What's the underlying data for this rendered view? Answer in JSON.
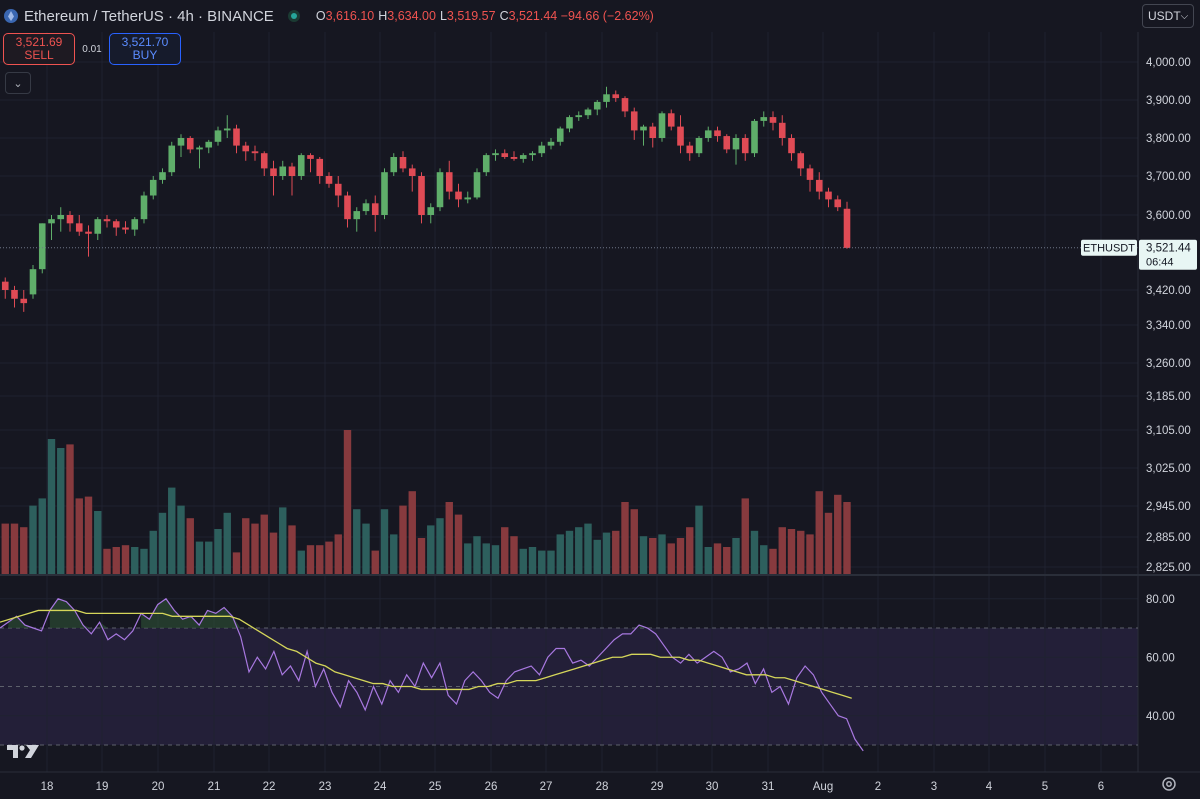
{
  "header": {
    "title": "Ethereum / TetherUS · 4h · BINANCE",
    "ohlc": [
      {
        "key": "O",
        "value": "3,616.10"
      },
      {
        "key": "H",
        "value": "3,634.00"
      },
      {
        "key": "L",
        "value": "3,519.57"
      },
      {
        "key": "C",
        "value": "3,521.44 −94.66 (−2.62%)"
      }
    ],
    "currency": "USDT",
    "icons": [
      "ethereum-logo-icon",
      "market-status-icon",
      "chevron-down-icon"
    ]
  },
  "trade": {
    "sell_price": "3,521.69",
    "sell_label": "SELL",
    "spread": "0.01",
    "buy_price": "3,521.70",
    "buy_label": "BUY"
  },
  "price_marker": {
    "symbol": "ETHUSDT",
    "price": "3,521.44",
    "countdown": "06:44"
  },
  "colors": {
    "background": "#161721",
    "up": "#5fae6a",
    "down": "#e04b55",
    "vol_up": "#2d5f5d",
    "vol_down": "#873a3e",
    "rsi_line": "#a878e0",
    "rsi_ma": "#d5d65a",
    "rsi_band": "#231f38"
  },
  "chart_data": [
    {
      "type": "candlestick",
      "name": "ETHUSDT 4h",
      "x_ticks": [
        "18",
        "19",
        "20",
        "21",
        "22",
        "23",
        "24",
        "25",
        "26",
        "27",
        "28",
        "29",
        "30",
        "31",
        "Aug",
        "2",
        "3",
        "4",
        "5",
        "6"
      ],
      "y_ticks": [
        "4,000.00",
        "3,900.00",
        "3,800.00",
        "3,700.00",
        "3,600.00",
        "3,420.00",
        "3,340.00",
        "3,260.00",
        "3,185.00",
        "3,105.00",
        "3,025.00",
        "2,945.00",
        "2,885.00",
        "2,825.00"
      ],
      "y_tick_values": [
        4000,
        3900,
        3800,
        3700,
        3600,
        3420,
        3340,
        3260,
        3185,
        3105,
        3025,
        2945,
        2885,
        2825
      ],
      "last_price": 3521.44,
      "candles": [
        [
          3380,
          3440,
          3360,
          3440
        ],
        [
          3440,
          3450,
          3400,
          3420
        ],
        [
          3420,
          3430,
          3380,
          3400
        ],
        [
          3400,
          3420,
          3370,
          3390
        ],
        [
          3410,
          3480,
          3400,
          3470
        ],
        [
          3470,
          3580,
          3460,
          3580
        ],
        [
          3580,
          3600,
          3540,
          3590
        ],
        [
          3590,
          3620,
          3560,
          3600
        ],
        [
          3600,
          3610,
          3560,
          3580
        ],
        [
          3580,
          3600,
          3550,
          3560
        ],
        [
          3560,
          3575,
          3500,
          3555
        ],
        [
          3555,
          3595,
          3540,
          3590
        ],
        [
          3590,
          3600,
          3570,
          3585
        ],
        [
          3585,
          3590,
          3550,
          3570
        ],
        [
          3570,
          3585,
          3555,
          3565
        ],
        [
          3565,
          3595,
          3550,
          3590
        ],
        [
          3590,
          3660,
          3580,
          3650
        ],
        [
          3650,
          3700,
          3640,
          3690
        ],
        [
          3690,
          3720,
          3680,
          3710
        ],
        [
          3710,
          3790,
          3700,
          3780
        ],
        [
          3780,
          3810,
          3750,
          3800
        ],
        [
          3800,
          3805,
          3760,
          3770
        ],
        [
          3770,
          3780,
          3720,
          3775
        ],
        [
          3775,
          3795,
          3760,
          3790
        ],
        [
          3790,
          3830,
          3780,
          3820
        ],
        [
          3820,
          3860,
          3800,
          3825
        ],
        [
          3825,
          3835,
          3760,
          3780
        ],
        [
          3780,
          3790,
          3740,
          3765
        ],
        [
          3765,
          3780,
          3740,
          3760
        ],
        [
          3760,
          3765,
          3700,
          3720
        ],
        [
          3720,
          3740,
          3650,
          3700
        ],
        [
          3700,
          3740,
          3690,
          3725
        ],
        [
          3725,
          3735,
          3650,
          3700
        ],
        [
          3700,
          3760,
          3690,
          3755
        ],
        [
          3755,
          3760,
          3710,
          3745
        ],
        [
          3745,
          3750,
          3680,
          3700
        ],
        [
          3700,
          3710,
          3670,
          3680
        ],
        [
          3680,
          3700,
          3620,
          3650
        ],
        [
          3650,
          3660,
          3570,
          3590
        ],
        [
          3590,
          3620,
          3560,
          3610
        ],
        [
          3610,
          3640,
          3600,
          3630
        ],
        [
          3630,
          3650,
          3560,
          3600
        ],
        [
          3600,
          3720,
          3590,
          3710
        ],
        [
          3710,
          3760,
          3700,
          3750
        ],
        [
          3750,
          3765,
          3710,
          3720
        ],
        [
          3720,
          3730,
          3660,
          3700
        ],
        [
          3700,
          3710,
          3580,
          3600
        ],
        [
          3600,
          3630,
          3580,
          3620
        ],
        [
          3620,
          3720,
          3610,
          3710
        ],
        [
          3710,
          3740,
          3640,
          3660
        ],
        [
          3660,
          3680,
          3620,
          3640
        ],
        [
          3640,
          3660,
          3630,
          3645
        ],
        [
          3645,
          3720,
          3640,
          3710
        ],
        [
          3710,
          3760,
          3700,
          3755
        ],
        [
          3755,
          3770,
          3740,
          3760
        ],
        [
          3760,
          3770,
          3745,
          3750
        ],
        [
          3750,
          3765,
          3740,
          3745
        ],
        [
          3745,
          3760,
          3735,
          3755
        ],
        [
          3755,
          3765,
          3740,
          3760
        ],
        [
          3760,
          3790,
          3750,
          3780
        ],
        [
          3780,
          3800,
          3770,
          3790
        ],
        [
          3790,
          3830,
          3780,
          3825
        ],
        [
          3825,
          3860,
          3815,
          3855
        ],
        [
          3855,
          3870,
          3845,
          3860
        ],
        [
          3860,
          3880,
          3850,
          3875
        ],
        [
          3875,
          3900,
          3860,
          3895
        ],
        [
          3895,
          3935,
          3880,
          3915
        ],
        [
          3915,
          3925,
          3895,
          3905
        ],
        [
          3905,
          3910,
          3855,
          3870
        ],
        [
          3870,
          3880,
          3795,
          3820
        ],
        [
          3820,
          3835,
          3780,
          3830
        ],
        [
          3830,
          3840,
          3775,
          3800
        ],
        [
          3800,
          3870,
          3790,
          3865
        ],
        [
          3865,
          3875,
          3820,
          3830
        ],
        [
          3830,
          3860,
          3760,
          3780
        ],
        [
          3780,
          3790,
          3740,
          3760
        ],
        [
          3760,
          3805,
          3750,
          3800
        ],
        [
          3800,
          3830,
          3790,
          3820
        ],
        [
          3820,
          3830,
          3790,
          3805
        ],
        [
          3805,
          3810,
          3760,
          3770
        ],
        [
          3770,
          3810,
          3730,
          3800
        ],
        [
          3800,
          3810,
          3740,
          3760
        ],
        [
          3760,
          3850,
          3750,
          3845
        ],
        [
          3845,
          3870,
          3830,
          3855
        ],
        [
          3855,
          3870,
          3820,
          3840
        ],
        [
          3840,
          3860,
          3780,
          3800
        ],
        [
          3800,
          3810,
          3740,
          3760
        ],
        [
          3760,
          3765,
          3700,
          3720
        ],
        [
          3720,
          3730,
          3660,
          3690
        ],
        [
          3690,
          3710,
          3640,
          3660
        ],
        [
          3660,
          3670,
          3620,
          3640
        ],
        [
          3640,
          3650,
          3610,
          3620
        ],
        [
          3616,
          3634,
          3519,
          3521
        ]
      ],
      "volume": [
        0.28,
        0.28,
        0.28,
        0.26,
        0.38,
        0.42,
        0.75,
        0.7,
        0.72,
        0.42,
        0.43,
        0.35,
        0.14,
        0.15,
        0.16,
        0.15,
        0.14,
        0.24,
        0.34,
        0.48,
        0.38,
        0.31,
        0.18,
        0.18,
        0.25,
        0.34,
        0.12,
        0.31,
        0.28,
        0.33,
        0.23,
        0.37,
        0.27,
        0.13,
        0.16,
        0.16,
        0.18,
        0.22,
        0.8,
        0.36,
        0.28,
        0.13,
        0.36,
        0.22,
        0.38,
        0.46,
        0.2,
        0.27,
        0.31,
        0.4,
        0.33,
        0.17,
        0.21,
        0.17,
        0.16,
        0.26,
        0.21,
        0.14,
        0.15,
        0.13,
        0.13,
        0.22,
        0.24,
        0.26,
        0.28,
        0.19,
        0.23,
        0.24,
        0.4,
        0.36,
        0.21,
        0.2,
        0.22,
        0.17,
        0.2,
        0.26,
        0.38,
        0.15,
        0.17,
        0.15,
        0.2,
        0.42,
        0.24,
        0.16,
        0.14,
        0.26,
        0.25,
        0.24,
        0.22,
        0.46,
        0.34,
        0.44,
        0.4
      ]
    },
    {
      "type": "line",
      "name": "RSI",
      "y_ticks": [
        "80.00",
        "60.00",
        "40.00"
      ],
      "y_tick_values": [
        80,
        60,
        40
      ],
      "band": [
        30,
        70
      ],
      "midline": 50,
      "rsi": [
        70,
        72,
        74,
        71,
        70,
        69,
        76,
        80,
        79,
        76,
        71,
        68,
        72,
        66,
        68,
        66,
        69,
        75,
        73,
        78,
        80,
        76,
        73,
        74,
        71,
        76,
        75,
        77,
        74,
        67,
        55,
        60,
        56,
        62,
        54,
        57,
        52,
        62,
        50,
        56,
        48,
        43,
        52,
        48,
        42,
        50,
        44,
        52,
        48,
        54,
        50,
        58,
        53,
        58,
        47,
        44,
        52,
        55,
        52,
        48,
        46,
        52,
        55,
        56,
        57,
        54,
        60,
        63,
        63,
        58,
        59,
        57,
        60,
        63,
        66,
        68,
        68,
        71,
        70,
        68,
        64,
        60,
        58,
        61,
        58,
        60,
        62,
        60,
        55,
        56,
        58,
        51,
        56,
        48,
        50,
        44,
        53,
        57,
        54,
        48,
        44,
        40,
        39,
        32,
        28
      ],
      "rsi_ma": [
        72,
        73,
        74,
        75,
        76,
        76,
        76,
        76,
        76,
        75,
        75,
        75,
        75,
        75,
        75,
        75,
        75,
        75,
        74,
        74,
        74,
        74,
        74,
        74,
        74,
        73,
        71,
        69,
        67,
        65,
        63,
        62,
        60,
        58,
        57,
        55,
        54,
        53,
        52,
        51,
        51,
        50,
        50,
        50,
        49,
        49,
        49,
        49,
        49,
        49,
        50,
        50,
        51,
        51,
        52,
        52,
        52,
        53,
        54,
        55,
        56,
        57,
        58,
        59,
        60,
        60,
        61,
        61,
        61,
        60,
        60,
        60,
        59,
        59,
        58,
        57,
        56,
        55,
        54,
        54,
        54,
        53,
        53,
        52,
        51,
        50,
        49,
        48,
        47,
        46
      ]
    }
  ]
}
